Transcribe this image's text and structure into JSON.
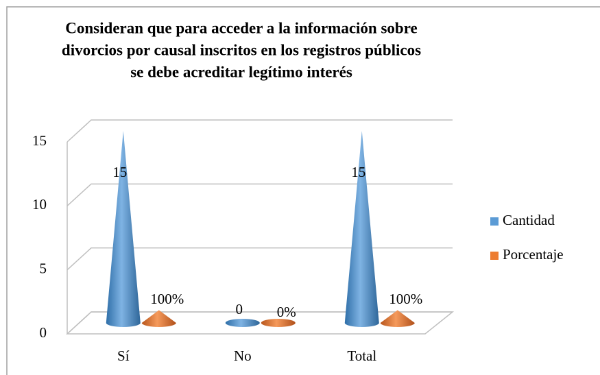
{
  "chart_data": {
    "type": "cone3d",
    "title": [
      "Consideran que para acceder a la información sobre",
      "divorcios por causal inscritos en los registros públicos",
      "se debe acreditar legítimo interés"
    ],
    "categories": [
      "Sí",
      "No",
      "Total"
    ],
    "series": [
      {
        "name": "Cantidad",
        "color": "#5b9bd5",
        "values": [
          15,
          0,
          15
        ]
      },
      {
        "name": "Porcentaje",
        "color": "#ed7d31",
        "values": [
          1,
          0,
          1
        ],
        "value_labels": [
          "100%",
          "0%",
          "100%"
        ]
      }
    ],
    "ylim": [
      0,
      15
    ],
    "yticks": [
      0,
      5,
      10,
      15
    ],
    "grid": true,
    "legend": "right"
  }
}
